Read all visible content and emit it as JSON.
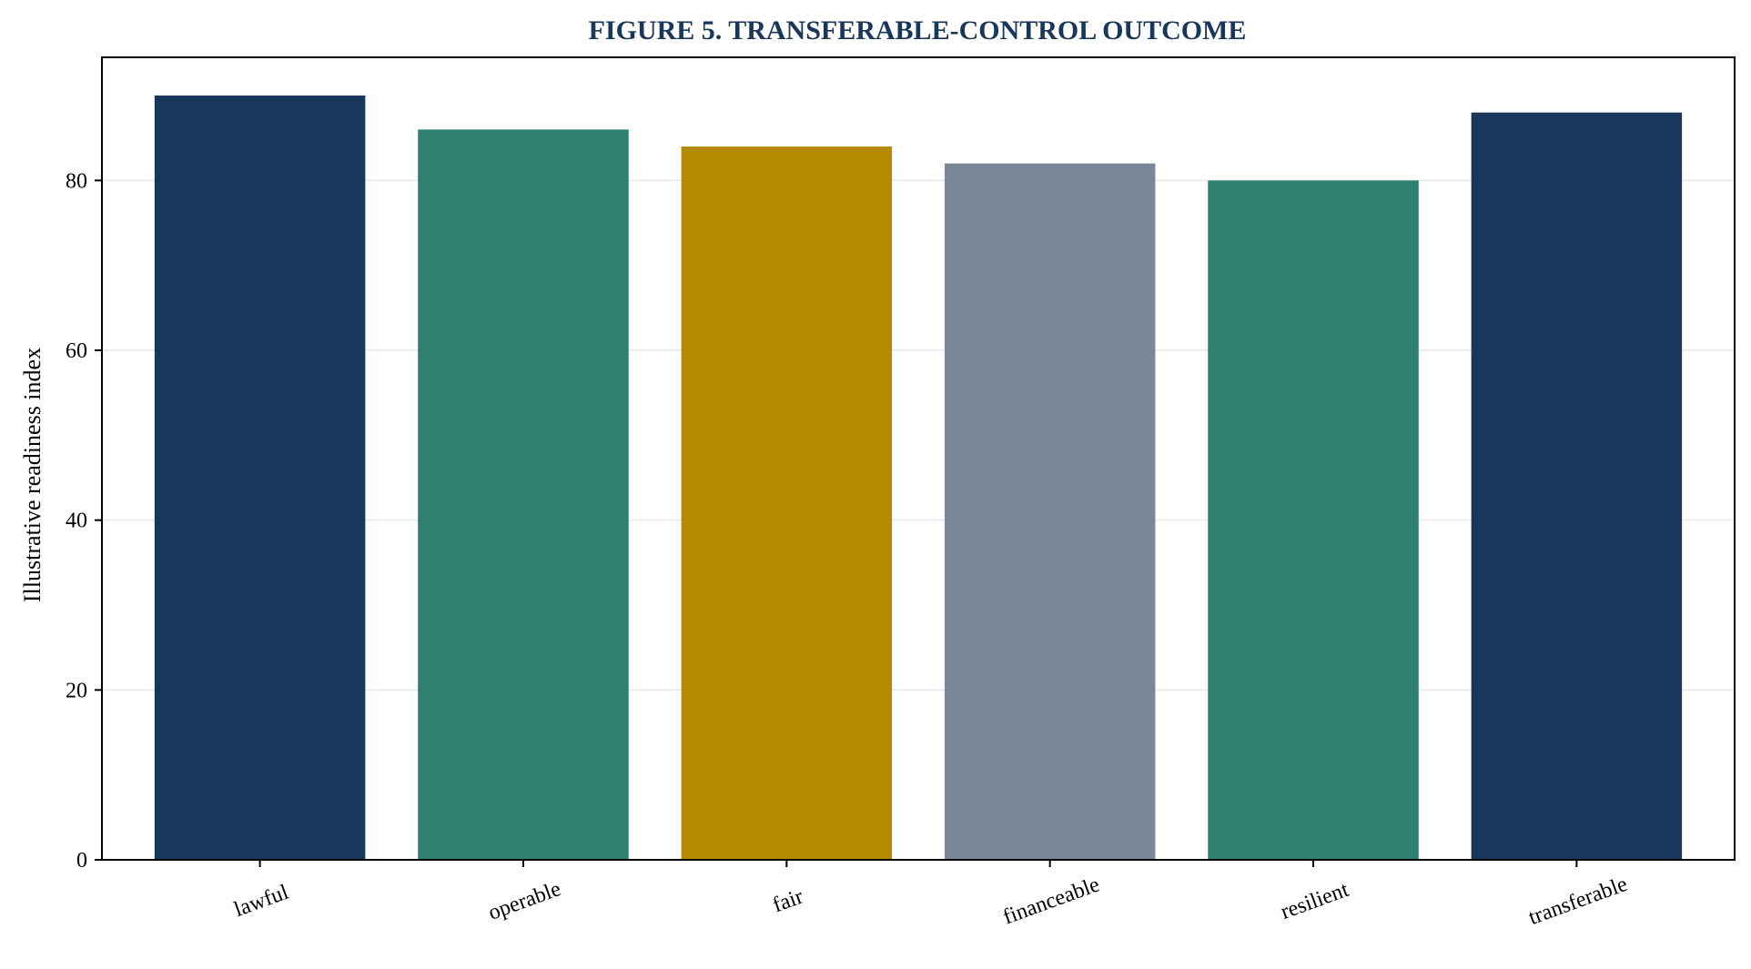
{
  "chart_data": {
    "type": "bar",
    "title": "FIGURE 5. TRANSFERABLE-CONTROL OUTCOME",
    "xlabel": "",
    "ylabel": "Illustrative readiness index",
    "categories": [
      "lawful",
      "operable",
      "fair",
      "financeable",
      "resilient",
      "transferable"
    ],
    "values": [
      90,
      86,
      84,
      82,
      80,
      88
    ],
    "bar_colors": [
      "#19365b",
      "#2e806f",
      "#b38a00",
      "#7a8796",
      "#2e806f",
      "#19365b"
    ],
    "ylim": [
      0,
      94.5
    ],
    "yticks": [
      0,
      20,
      40,
      60,
      80
    ],
    "ytick_labels": [
      "0",
      "20",
      "40",
      "60",
      "80"
    ],
    "grid": true,
    "legend": "none",
    "title_color": "#19365b"
  }
}
